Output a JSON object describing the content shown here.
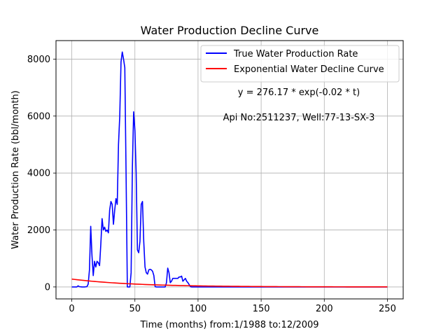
{
  "chart_data": {
    "type": "line",
    "title": "Water Production Decline Curve",
    "xlabel": "Time (months) from:1/1988 to:12/2009",
    "ylabel": "Water Production Rate (bbl/month)",
    "xlim": [
      -12.5,
      262.5
    ],
    "ylim": [
      -420,
      8650
    ],
    "xticks": [
      0,
      50,
      100,
      150,
      200,
      250
    ],
    "yticks": [
      0,
      2000,
      4000,
      6000,
      8000
    ],
    "grid": true,
    "legend_position": "top-right",
    "annotations": [
      "y = 276.17 * exp(-0.02 * t)",
      "Api No:2511237, Well:77-13-SX-3"
    ],
    "series": [
      {
        "name": "True Water Production Rate",
        "color": "#0000ff",
        "x": [
          0,
          2,
          4,
          5,
          6,
          7,
          8,
          10,
          12,
          13,
          14,
          15,
          16,
          17,
          18,
          19,
          20,
          21,
          22,
          23,
          24,
          25,
          26,
          27,
          28,
          29,
          30,
          31,
          32,
          33,
          34,
          35,
          36,
          37,
          38,
          39,
          40,
          41,
          42,
          43,
          44,
          45,
          46,
          47,
          48,
          49,
          50,
          51,
          52,
          53,
          54,
          55,
          56,
          57,
          58,
          59,
          60,
          61,
          62,
          63,
          64,
          65,
          66,
          67,
          68,
          70,
          72,
          74,
          75,
          76,
          77,
          78,
          79,
          80,
          82,
          84,
          85,
          86,
          87,
          88,
          89,
          90,
          91,
          92,
          93,
          94,
          95,
          100,
          120,
          150,
          200,
          250
        ],
        "y": [
          0,
          0,
          0,
          40,
          10,
          5,
          0,
          0,
          10,
          100,
          600,
          2130,
          1100,
          400,
          900,
          700,
          900,
          850,
          750,
          1500,
          2400,
          2000,
          2100,
          1950,
          2000,
          1900,
          2700,
          3000,
          2900,
          2200,
          2700,
          3100,
          2900,
          5000,
          6000,
          7900,
          8250,
          8000,
          7700,
          4000,
          0,
          0,
          0,
          500,
          4200,
          6150,
          5500,
          4000,
          1300,
          1200,
          1600,
          2900,
          3000,
          1600,
          700,
          500,
          450,
          600,
          620,
          600,
          550,
          400,
          10,
          0,
          0,
          0,
          0,
          0,
          150,
          660,
          500,
          150,
          200,
          300,
          300,
          300,
          350,
          350,
          380,
          200,
          250,
          300,
          200,
          150,
          80,
          10,
          0,
          0,
          0,
          0,
          0,
          0
        ]
      },
      {
        "name": "Exponential Water Decline Curve",
        "color": "#ff0000",
        "function": {
          "a": 276.17,
          "b": -0.02
        },
        "x_range": [
          0,
          250
        ]
      }
    ]
  }
}
